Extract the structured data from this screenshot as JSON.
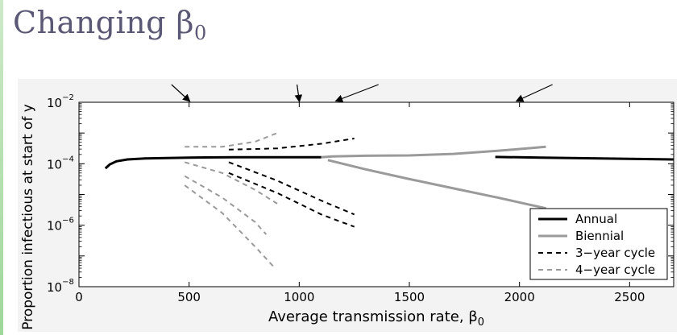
{
  "slide": {
    "title_main": "Changing β",
    "title_sub": "0"
  },
  "chart_data": {
    "type": "line",
    "xlabel": "Average transmission rate, β",
    "xlabel_sub": "0",
    "ylabel": "Proportion infectious at start of y",
    "xlim": [
      0,
      2700
    ],
    "ylog": true,
    "ylim_exp": [
      -8,
      -2
    ],
    "xticks": [
      "0",
      "500",
      "1000",
      "1500",
      "2000",
      "2500"
    ],
    "xtick_values": [
      0,
      500,
      1000,
      1500,
      2000,
      2500
    ],
    "yticks": [
      {
        "base": "10",
        "exp": "−8",
        "value": -8
      },
      {
        "base": "10",
        "exp": "−6",
        "value": -6
      },
      {
        "base": "10",
        "exp": "−4",
        "value": -4
      },
      {
        "base": "10",
        "exp": "−2",
        "value": -2
      }
    ],
    "grid": false,
    "legend_position": "bottom-right",
    "annotation_arrows": [
      {
        "from_x": 420,
        "to_x": 500
      },
      {
        "from_x": 990,
        "to_x": 1000
      },
      {
        "from_x": 1360,
        "to_x": 1170
      },
      {
        "from_x": 2150,
        "to_x": 1990
      }
    ],
    "series": [
      {
        "name": "Annual",
        "color": "#000000",
        "dash": "solid",
        "width": 3,
        "segments": [
          [
            [
              120,
              -4.15
            ],
            [
              140,
              -4.02
            ],
            [
              170,
              -3.92
            ],
            [
              220,
              -3.86
            ],
            [
              300,
              -3.83
            ],
            [
              500,
              -3.8
            ],
            [
              700,
              -3.79
            ],
            [
              900,
              -3.79
            ],
            [
              1100,
              -3.79
            ]
          ],
          [
            [
              1890,
              -3.78
            ],
            [
              2100,
              -3.8
            ],
            [
              2300,
              -3.82
            ],
            [
              2500,
              -3.84
            ],
            [
              2700,
              -3.86
            ]
          ]
        ]
      },
      {
        "name": "Biennial",
        "color": "#9a9a9a",
        "dash": "solid",
        "width": 3,
        "segments": [
          [
            [
              1100,
              -3.79
            ],
            [
              1150,
              -3.76
            ],
            [
              1300,
              -3.74
            ],
            [
              1500,
              -3.73
            ],
            [
              1700,
              -3.68
            ],
            [
              1900,
              -3.58
            ],
            [
              2120,
              -3.45
            ]
          ],
          [
            [
              1130,
              -3.88
            ],
            [
              1300,
              -4.18
            ],
            [
              1500,
              -4.5
            ],
            [
              1700,
              -4.8
            ],
            [
              1900,
              -5.1
            ],
            [
              2120,
              -5.45
            ]
          ]
        ]
      },
      {
        "name": "3−year cycle",
        "color": "#000000",
        "dash": "dash",
        "width": 2,
        "segments": [
          [
            [
              680,
              -3.54
            ],
            [
              900,
              -3.5
            ],
            [
              1100,
              -3.35
            ],
            [
              1250,
              -3.18
            ]
          ],
          [
            [
              680,
              -3.95
            ],
            [
              900,
              -4.55
            ],
            [
              1100,
              -5.2
            ],
            [
              1250,
              -5.65
            ]
          ],
          [
            [
              680,
              -4.3
            ],
            [
              900,
              -4.95
            ],
            [
              1100,
              -5.65
            ],
            [
              1250,
              -6.05
            ]
          ]
        ]
      },
      {
        "name": "4−year cycle",
        "color": "#9a9a9a",
        "dash": "dash",
        "width": 2,
        "segments": [
          [
            [
              480,
              -3.45
            ],
            [
              650,
              -3.45
            ],
            [
              800,
              -3.28
            ],
            [
              900,
              -3.0
            ]
          ],
          [
            [
              480,
              -3.95
            ],
            [
              650,
              -4.3
            ],
            [
              800,
              -4.85
            ],
            [
              900,
              -5.3
            ]
          ],
          [
            [
              480,
              -4.4
            ],
            [
              650,
              -5.1
            ],
            [
              800,
              -5.9
            ],
            [
              850,
              -6.3
            ]
          ],
          [
            [
              480,
              -4.7
            ],
            [
              650,
              -5.6
            ],
            [
              800,
              -6.7
            ],
            [
              890,
              -7.4
            ]
          ]
        ]
      }
    ]
  }
}
